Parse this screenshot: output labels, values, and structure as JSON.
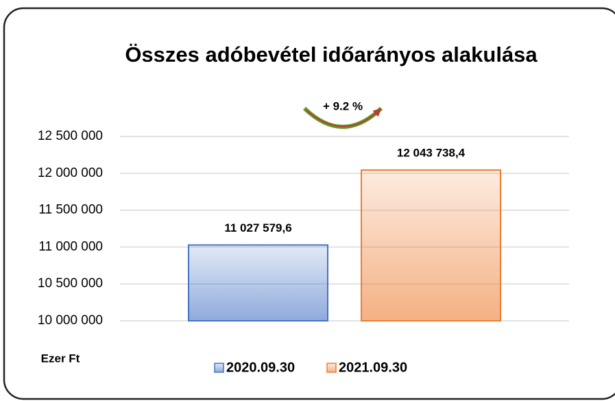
{
  "chart_data": {
    "type": "bar",
    "title": "Összes adóbevétel időarányos  alakulása",
    "annotation": "+ 9.2 %",
    "y_label": "Ezer Ft",
    "categories": [
      null
    ],
    "series": [
      {
        "name": "2020.09.30",
        "color": "#4472c4",
        "values": [
          11027579.6
        ],
        "value_labels": [
          "11 027 579,6"
        ]
      },
      {
        "name": "2021.09.30",
        "color": "#ed7d31",
        "values": [
          12043738.4
        ],
        "value_labels": [
          "12 043 738,4"
        ]
      }
    ],
    "ylim": [
      10000000,
      12500000
    ],
    "yticks": [
      {
        "value": 10000000,
        "label": "10 000 000"
      },
      {
        "value": 10500000,
        "label": "10 500 000"
      },
      {
        "value": 11000000,
        "label": "11 000 000"
      },
      {
        "value": 11500000,
        "label": "11 500 000"
      },
      {
        "value": 12000000,
        "label": "12 000 000"
      },
      {
        "value": 12500000,
        "label": "12 500 000"
      }
    ],
    "grid": true,
    "legend": "bottom"
  }
}
